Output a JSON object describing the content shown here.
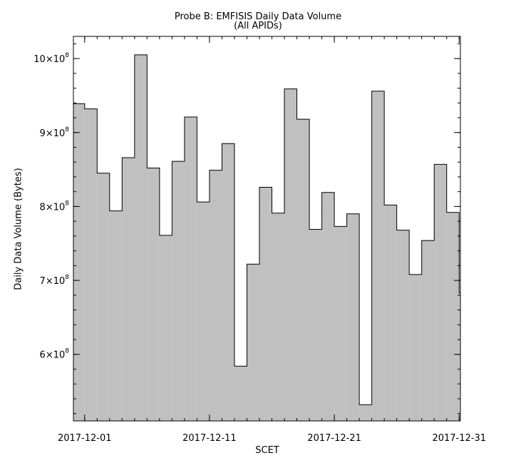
{
  "chart_data": {
    "type": "bar",
    "style": "histogram-step",
    "title": "Probe B: EMFISIS Daily Data Volume",
    "subtitle": "(All APIDs)",
    "xlabel": "SCET",
    "ylabel": "Daily Data Volume (Bytes)",
    "x": [
      "2017-11-30",
      "2017-12-01",
      "2017-12-02",
      "2017-12-03",
      "2017-12-04",
      "2017-12-05",
      "2017-12-06",
      "2017-12-07",
      "2017-12-08",
      "2017-12-09",
      "2017-12-10",
      "2017-12-11",
      "2017-12-12",
      "2017-12-13",
      "2017-12-14",
      "2017-12-15",
      "2017-12-16",
      "2017-12-17",
      "2017-12-18",
      "2017-12-19",
      "2017-12-20",
      "2017-12-21",
      "2017-12-22",
      "2017-12-23",
      "2017-12-24",
      "2017-12-25",
      "2017-12-26",
      "2017-12-27",
      "2017-12-28",
      "2017-12-29",
      "2017-12-30",
      "2017-12-31"
    ],
    "values": [
      939000000,
      932000000,
      845000000,
      794000000,
      866000000,
      1005000000,
      852000000,
      761000000,
      861000000,
      921000000,
      806000000,
      849000000,
      885000000,
      584000000,
      722000000,
      826000000,
      791000000,
      959000000,
      918000000,
      769000000,
      819000000,
      773000000,
      790000000,
      532000000,
      956000000,
      802000000,
      768000000,
      708000000,
      754000000,
      857000000,
      792000000,
      683000000
    ],
    "xlim": [
      "2017-11-30",
      "2017-12-31"
    ],
    "ylim": [
      510000000,
      1030000000
    ],
    "xticks": [
      "2017-12-01",
      "2017-12-11",
      "2017-12-21",
      "2017-12-31"
    ],
    "yticks": [
      {
        "value": 600000000,
        "base": "6×10",
        "exp": "8"
      },
      {
        "value": 700000000,
        "base": "7×10",
        "exp": "8"
      },
      {
        "value": 800000000,
        "base": "8×10",
        "exp": "8"
      },
      {
        "value": 900000000,
        "base": "9×10",
        "exp": "8"
      },
      {
        "value": 1000000000,
        "base": "10×10",
        "exp": "8"
      }
    ],
    "grid": false,
    "fill_color": "#c0c0c0",
    "line_color": "#000000"
  }
}
